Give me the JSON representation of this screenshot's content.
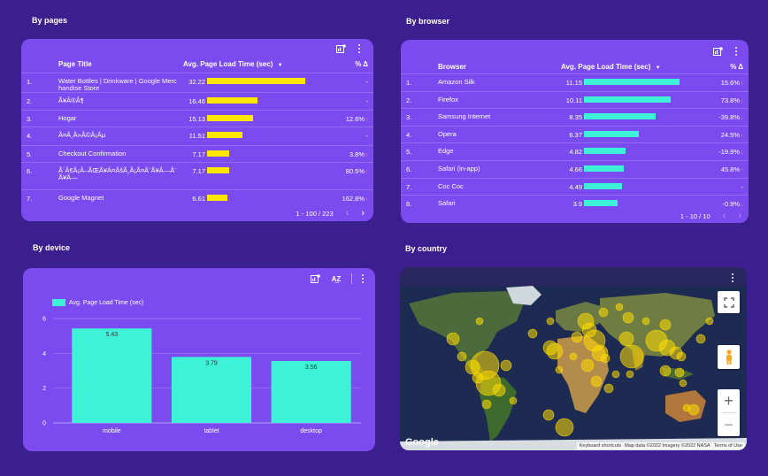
{
  "sections": {
    "pages_title": "By pages",
    "browser_title": "By browser",
    "device_title": "By device",
    "country_title": "By country"
  },
  "pages_table": {
    "col_name": "Page Title",
    "col_metric": "Avg. Page Load Time (sec)",
    "col_delta": "% Δ",
    "max": 32.22,
    "rows": [
      {
        "idx": "1.",
        "name": "Water Bottles | Drinkware | Google Merchandise Store",
        "value": "32.22",
        "num": 32.22,
        "pct": "-",
        "dir": ""
      },
      {
        "idx": "2.",
        "name": "Ã¥Â®Â¶",
        "value": "16.46",
        "num": 16.46,
        "pct": "-",
        "dir": ""
      },
      {
        "idx": "3.",
        "name": "Hogar",
        "value": "15.13",
        "num": 15.13,
        "pct": "12.6%",
        "dir": "↑"
      },
      {
        "idx": "4.",
        "name": "Ã¤Â¸Â»Ã©Â¡Âµ",
        "value": "11.51",
        "num": 11.51,
        "pct": "-",
        "dir": ""
      },
      {
        "idx": "5.",
        "name": "Checkout Confirmation",
        "value": "7.17",
        "num": 7.17,
        "pct": "3.8%",
        "dir": "↑"
      },
      {
        "idx": "6.",
        "name": "Ã´Â€Â¡Â–ÃŒÃ¥Â¤ÂšÃ¸Ã¡Ã¤Â¨Ã¥Â—Â¨Ã¥Â—",
        "value": "7.17",
        "num": 7.17,
        "pct": "80.5%",
        "dir": "↑"
      },
      {
        "idx": "7.",
        "name": "Google Magnet",
        "value": "6.61",
        "num": 6.61,
        "pct": "162.8%",
        "dir": "↑"
      }
    ],
    "pager": "1 - 100 / 223"
  },
  "browser_table": {
    "col_name": "Browser",
    "col_metric": "Avg. Page Load Time (sec)",
    "col_delta": "% Δ",
    "max": 11.15,
    "rows": [
      {
        "idx": "1.",
        "name": "Amazon Silk",
        "value": "11.15",
        "num": 11.15,
        "pct": "15.6%",
        "dir": "↑"
      },
      {
        "idx": "2.",
        "name": "Firefox",
        "value": "10.11",
        "num": 10.11,
        "pct": "73.8%",
        "dir": "↑"
      },
      {
        "idx": "3.",
        "name": "Samsung Internet",
        "value": "8.35",
        "num": 8.35,
        "pct": "-39.8%",
        "dir": "↓"
      },
      {
        "idx": "4.",
        "name": "Opera",
        "value": "6.37",
        "num": 6.37,
        "pct": "24.5%",
        "dir": "↑"
      },
      {
        "idx": "5.",
        "name": "Edge",
        "value": "4.82",
        "num": 4.82,
        "pct": "-19.9%",
        "dir": "↓"
      },
      {
        "idx": "6.",
        "name": "Safari (in-app)",
        "value": "4.66",
        "num": 4.66,
        "pct": "45.8%",
        "dir": "↑"
      },
      {
        "idx": "7.",
        "name": "Coc Coc",
        "value": "4.49",
        "num": 4.49,
        "pct": "-",
        "dir": ""
      },
      {
        "idx": "8.",
        "name": "Safari",
        "value": "3.9",
        "num": 3.9,
        "pct": "-0.9%",
        "dir": "↓"
      }
    ],
    "pager": "1 - 10 / 10"
  },
  "chart_data": {
    "type": "bar",
    "title": "By device",
    "series": [
      {
        "name": "Avg. Page Load Time (sec)",
        "values": [
          5.43,
          3.79,
          3.56
        ]
      }
    ],
    "categories": [
      "mobile",
      "tablet",
      "desktop"
    ],
    "data_labels": [
      "5.43",
      "3.79",
      "3.56"
    ],
    "ylim": [
      0,
      6
    ],
    "yticks": [
      "0",
      "2",
      "4",
      "6"
    ],
    "legend_label": "Avg. Page Load Time (sec)",
    "color": "#3ef2d8"
  },
  "map": {
    "logo": "Google",
    "attrib": [
      "Keyboard shortcuts",
      "Map data ©2022 Imagery ©2022 NASA",
      "Terms of Use"
    ],
    "zoom_in": "+",
    "zoom_out": "−"
  },
  "colors": {
    "bg": "#3c1f8f",
    "card": "#7b4bf0",
    "pages_bar": "#ffe600",
    "browser_bar": "#3ef2d8",
    "delta": "#ff9aa8"
  }
}
